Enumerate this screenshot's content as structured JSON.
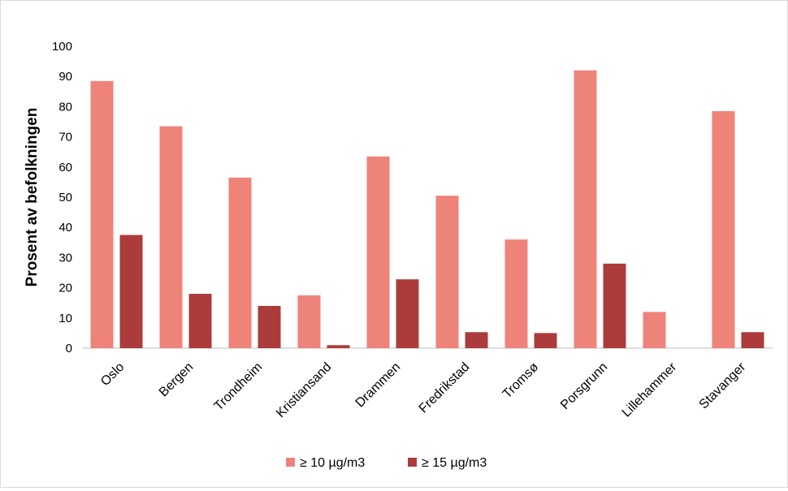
{
  "chart_data": {
    "type": "bar",
    "title": "",
    "xlabel": "",
    "ylabel": "Prosent av befolkningen",
    "ylim": [
      0,
      100
    ],
    "yticks": [
      0,
      10,
      20,
      30,
      40,
      50,
      60,
      70,
      80,
      90,
      100
    ],
    "grid": false,
    "legend_position": "bottom",
    "categories": [
      "Oslo",
      "Bergen",
      "Trondheim",
      "Kristiansand",
      "Drammen",
      "Fredrikstad",
      "Tromsø",
      "Porsgrunn",
      "Lillehammer",
      "Stavanger"
    ],
    "series": [
      {
        "name": "≥ 10 µg/m3",
        "color": "#ee837a",
        "values": [
          88.5,
          73.5,
          56.5,
          17.5,
          63.5,
          50.5,
          36,
          92,
          12,
          78.5
        ]
      },
      {
        "name": "≥ 15 µg/m3",
        "color": "#ac3b3b",
        "values": [
          37.5,
          18,
          14,
          1,
          22.8,
          5.3,
          5,
          28,
          0,
          5.3
        ]
      }
    ]
  }
}
